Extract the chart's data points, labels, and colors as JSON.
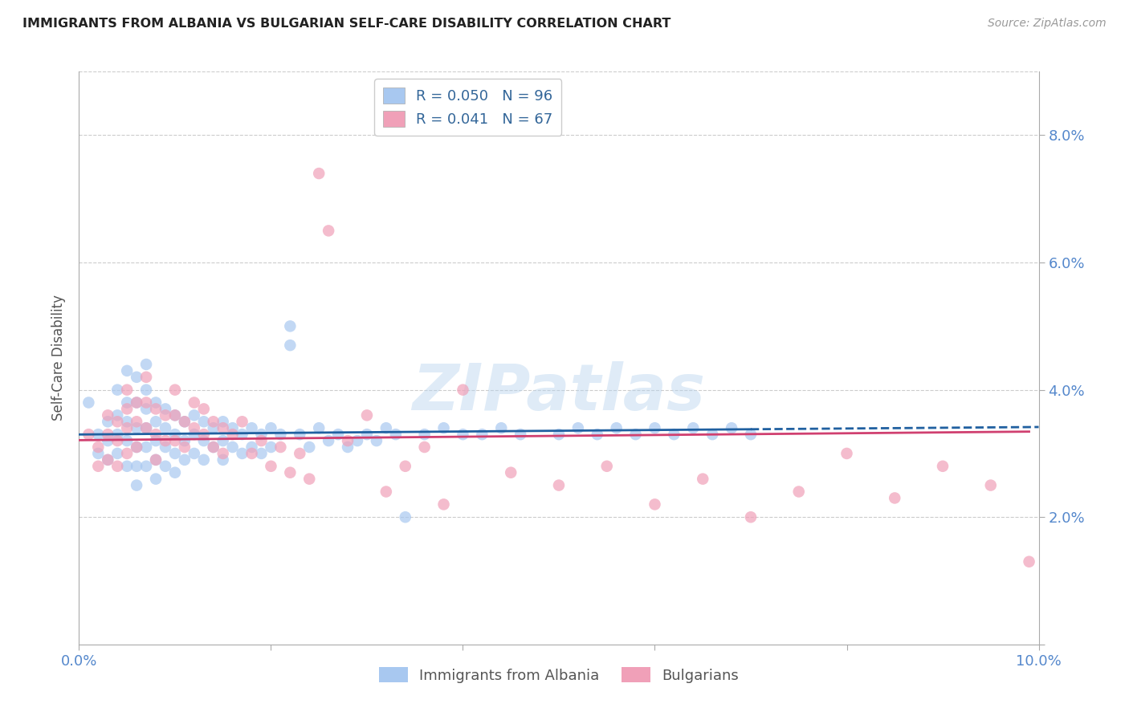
{
  "title": "IMMIGRANTS FROM ALBANIA VS BULGARIAN SELF-CARE DISABILITY CORRELATION CHART",
  "source": "Source: ZipAtlas.com",
  "ylabel": "Self-Care Disability",
  "xlim": [
    0.0,
    0.1
  ],
  "ylim": [
    0.0,
    0.09
  ],
  "ytick_vals": [
    0.0,
    0.02,
    0.04,
    0.06,
    0.08
  ],
  "ytick_labels": [
    "",
    "2.0%",
    "4.0%",
    "6.0%",
    "8.0%"
  ],
  "xtick_vals": [
    0.0,
    0.02,
    0.04,
    0.06,
    0.08,
    0.1
  ],
  "xtick_labels": [
    "0.0%",
    "",
    "",
    "",
    "",
    "10.0%"
  ],
  "albania_color": "#A8C8F0",
  "bulgarian_color": "#F0A0B8",
  "albania_line_color": "#2060A0",
  "bulgarian_line_color": "#D04070",
  "albania_R": 0.05,
  "albania_N": 96,
  "bulgarian_R": 0.041,
  "bulgarian_N": 67,
  "watermark": "ZIPatlas",
  "background_color": "#ffffff",
  "grid_color": "#cccccc",
  "tick_color": "#5588CC",
  "albania_x": [
    0.001,
    0.002,
    0.002,
    0.003,
    0.003,
    0.003,
    0.004,
    0.004,
    0.004,
    0.004,
    0.005,
    0.005,
    0.005,
    0.005,
    0.005,
    0.006,
    0.006,
    0.006,
    0.006,
    0.006,
    0.006,
    0.007,
    0.007,
    0.007,
    0.007,
    0.007,
    0.007,
    0.008,
    0.008,
    0.008,
    0.008,
    0.008,
    0.009,
    0.009,
    0.009,
    0.009,
    0.01,
    0.01,
    0.01,
    0.01,
    0.011,
    0.011,
    0.011,
    0.012,
    0.012,
    0.012,
    0.013,
    0.013,
    0.013,
    0.014,
    0.014,
    0.015,
    0.015,
    0.015,
    0.016,
    0.016,
    0.017,
    0.017,
    0.018,
    0.018,
    0.019,
    0.019,
    0.02,
    0.02,
    0.021,
    0.022,
    0.022,
    0.023,
    0.024,
    0.025,
    0.026,
    0.027,
    0.028,
    0.029,
    0.03,
    0.031,
    0.032,
    0.033,
    0.034,
    0.036,
    0.038,
    0.04,
    0.042,
    0.044,
    0.046,
    0.05,
    0.052,
    0.054,
    0.056,
    0.058,
    0.06,
    0.062,
    0.064,
    0.066,
    0.068,
    0.07
  ],
  "albania_y": [
    0.038,
    0.033,
    0.03,
    0.035,
    0.032,
    0.029,
    0.04,
    0.036,
    0.033,
    0.03,
    0.043,
    0.038,
    0.035,
    0.032,
    0.028,
    0.042,
    0.038,
    0.034,
    0.031,
    0.028,
    0.025,
    0.044,
    0.04,
    0.037,
    0.034,
    0.031,
    0.028,
    0.038,
    0.035,
    0.032,
    0.029,
    0.026,
    0.037,
    0.034,
    0.031,
    0.028,
    0.036,
    0.033,
    0.03,
    0.027,
    0.035,
    0.032,
    0.029,
    0.036,
    0.033,
    0.03,
    0.035,
    0.032,
    0.029,
    0.034,
    0.031,
    0.035,
    0.032,
    0.029,
    0.034,
    0.031,
    0.033,
    0.03,
    0.034,
    0.031,
    0.033,
    0.03,
    0.034,
    0.031,
    0.033,
    0.05,
    0.047,
    0.033,
    0.031,
    0.034,
    0.032,
    0.033,
    0.031,
    0.032,
    0.033,
    0.032,
    0.034,
    0.033,
    0.02,
    0.033,
    0.034,
    0.033,
    0.033,
    0.034,
    0.033,
    0.033,
    0.034,
    0.033,
    0.034,
    0.033,
    0.034,
    0.033,
    0.034,
    0.033,
    0.034,
    0.033
  ],
  "bulgarian_x": [
    0.001,
    0.002,
    0.002,
    0.003,
    0.003,
    0.003,
    0.004,
    0.004,
    0.004,
    0.005,
    0.005,
    0.005,
    0.005,
    0.006,
    0.006,
    0.006,
    0.007,
    0.007,
    0.007,
    0.008,
    0.008,
    0.008,
    0.009,
    0.009,
    0.01,
    0.01,
    0.01,
    0.011,
    0.011,
    0.012,
    0.012,
    0.013,
    0.013,
    0.014,
    0.014,
    0.015,
    0.015,
    0.016,
    0.017,
    0.018,
    0.019,
    0.02,
    0.021,
    0.022,
    0.023,
    0.024,
    0.025,
    0.026,
    0.028,
    0.03,
    0.032,
    0.034,
    0.036,
    0.038,
    0.04,
    0.045,
    0.05,
    0.055,
    0.06,
    0.065,
    0.07,
    0.075,
    0.08,
    0.085,
    0.09,
    0.095,
    0.099
  ],
  "bulgarian_y": [
    0.033,
    0.031,
    0.028,
    0.036,
    0.033,
    0.029,
    0.035,
    0.032,
    0.028,
    0.04,
    0.037,
    0.034,
    0.03,
    0.038,
    0.035,
    0.031,
    0.042,
    0.038,
    0.034,
    0.037,
    0.033,
    0.029,
    0.036,
    0.032,
    0.04,
    0.036,
    0.032,
    0.035,
    0.031,
    0.038,
    0.034,
    0.037,
    0.033,
    0.035,
    0.031,
    0.034,
    0.03,
    0.033,
    0.035,
    0.03,
    0.032,
    0.028,
    0.031,
    0.027,
    0.03,
    0.026,
    0.074,
    0.065,
    0.032,
    0.036,
    0.024,
    0.028,
    0.031,
    0.022,
    0.04,
    0.027,
    0.025,
    0.028,
    0.022,
    0.026,
    0.02,
    0.024,
    0.03,
    0.023,
    0.028,
    0.025,
    0.013
  ]
}
